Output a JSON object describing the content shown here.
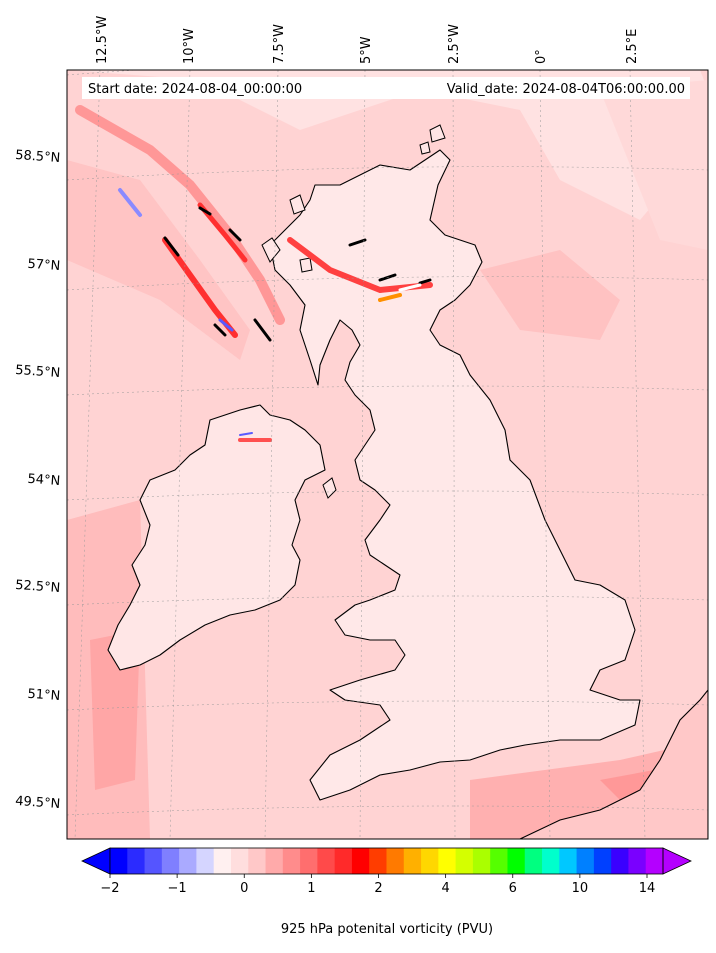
{
  "map": {
    "header": {
      "start_date": "Start date: 2024-08-04_00:00:00",
      "valid_date": "Valid_date: 2024-08-04T06:00:00.00"
    },
    "longitude_labels": [
      "12.5°W",
      "10°W",
      "7.5°W",
      "5°W",
      "2.5°W",
      "0°",
      "2.5°E"
    ],
    "latitude_labels": [
      "58.5°N",
      "57°N",
      "55.5°N",
      "54°N",
      "52.5°N",
      "51°N",
      "49.5°N"
    ],
    "field": "925 hPa potential vorticity",
    "colors": {
      "background_field": "#ffcfcf",
      "land_field": "#ffe6e6",
      "strong_positive": "#ff3b3b",
      "negative": "#b8c0ff",
      "coastline": "#000000"
    }
  },
  "colorbar": {
    "tick_labels": [
      "−2",
      "−1",
      "0",
      "1",
      "2",
      "4",
      "6",
      "10",
      "14"
    ],
    "label": "925 hPa potenital vorticity (PVU)",
    "colors": [
      "#0000ff",
      "#2b2bff",
      "#5555ff",
      "#7f7fff",
      "#aaaaff",
      "#d5d5ff",
      "#fff0f0",
      "#ffdede",
      "#ffc8c8",
      "#ffaaaa",
      "#ff8c8c",
      "#ff6e6e",
      "#ff4a4a",
      "#ff2a2a",
      "#ff0000",
      "#ff3d00",
      "#ff7a00",
      "#ffb000",
      "#ffd700",
      "#ffff00",
      "#d4ff00",
      "#aaff00",
      "#55ff00",
      "#00ff00",
      "#00ff80",
      "#00ffcc",
      "#00c8ff",
      "#0080ff",
      "#0040ff",
      "#3a00ff",
      "#7a00ff",
      "#b400ff"
    ]
  }
}
